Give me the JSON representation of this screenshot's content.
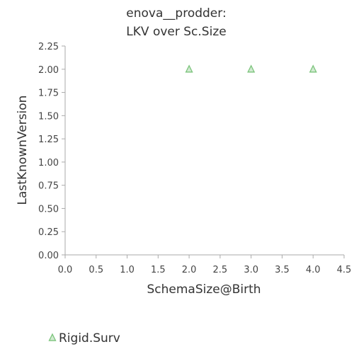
{
  "chart_data": {
    "type": "scatter",
    "title_lines": [
      "enova__prodder:",
      "LKV over Sc.Size"
    ],
    "xlabel": "SchemaSize@Birth",
    "ylabel": "LastKnownVersion",
    "xlim": [
      0,
      4.5
    ],
    "ylim": [
      0,
      2.25
    ],
    "xticks": [
      "0.0",
      "0.5",
      "1.0",
      "1.5",
      "2.0",
      "2.5",
      "3.0",
      "3.5",
      "4.0",
      "4.5"
    ],
    "yticks": [
      "0.00",
      "0.25",
      "0.50",
      "0.75",
      "1.00",
      "1.25",
      "1.50",
      "1.75",
      "2.00",
      "2.25"
    ],
    "grid": false,
    "legend_position": "bottom-left",
    "series": [
      {
        "name": "Rigid.Surv",
        "marker": "triangle",
        "color": "#7cc47c",
        "points": [
          {
            "x": 2.0,
            "y": 2.0
          },
          {
            "x": 3.0,
            "y": 2.0
          },
          {
            "x": 4.0,
            "y": 2.0
          }
        ]
      }
    ]
  }
}
